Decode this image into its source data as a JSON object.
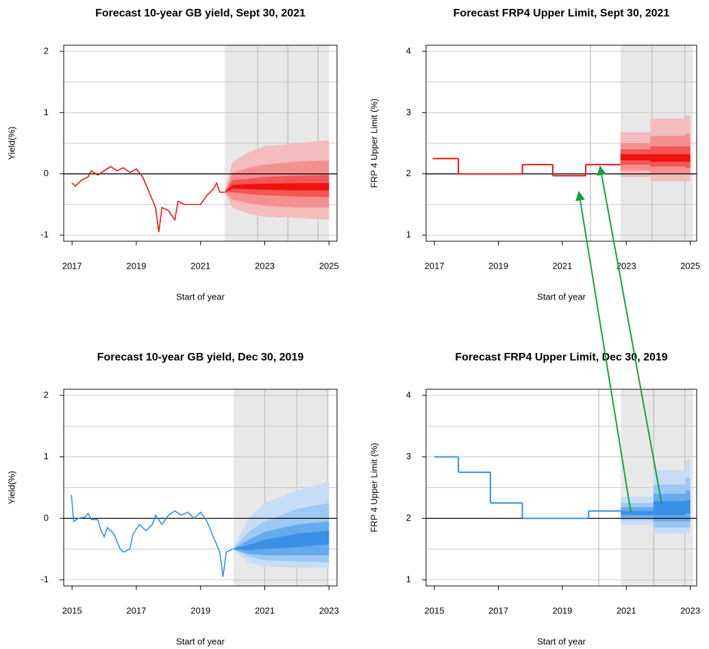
{
  "chart_data": [
    {
      "type": "fan",
      "title": "Forecast 10-year GB yield, Sept 30, 2021",
      "x_label": "Start of year",
      "y_label": "Yield(%)",
      "xlim": [
        2016.74,
        2025.25
      ],
      "xticks": [
        2017,
        2019,
        2021,
        2023,
        2025
      ],
      "xgrid": [
        2022.78,
        2023.72,
        2024.66
      ],
      "ylim": [
        -1.1,
        2.1
      ],
      "yticks": [
        -1,
        0,
        1,
        2
      ],
      "ygrid": [
        -1,
        -0.5,
        0.5,
        1,
        1.5,
        2
      ],
      "hline": 0,
      "forecast_region": [
        2021.75,
        2025.0
      ],
      "shade_color": "#e8e8e8",
      "color": "#e81010",
      "step": false,
      "x": [
        2017.0,
        2017.1,
        2017.3,
        2017.5,
        2017.6,
        2017.8,
        2018.0,
        2018.2,
        2018.4,
        2018.6,
        2018.8,
        2019.0,
        2019.2,
        2019.4,
        2019.6,
        2019.7,
        2019.8,
        2020.0,
        2020.2,
        2020.3,
        2020.5,
        2020.7,
        2021.0,
        2021.2,
        2021.4,
        2021.5,
        2021.6,
        2021.75
      ],
      "values": [
        -0.15,
        -0.2,
        -0.1,
        -0.05,
        0.05,
        -0.02,
        0.05,
        0.12,
        0.05,
        0.1,
        0.02,
        0.08,
        -0.05,
        -0.3,
        -0.55,
        -0.95,
        -0.55,
        -0.6,
        -0.75,
        -0.45,
        -0.5,
        -0.5,
        -0.5,
        -0.35,
        -0.25,
        -0.15,
        -0.3,
        -0.3
      ],
      "fan_x": [
        2021.75,
        2022.0,
        2022.5,
        2023.0,
        2024.0,
        2025.0
      ],
      "bands": [
        {
          "color": "#f4bcbc",
          "upper": [
            -0.3,
            0.2,
            0.35,
            0.45,
            0.5,
            0.55
          ],
          "lower": [
            -0.3,
            -0.55,
            -0.65,
            -0.7,
            -0.72,
            -0.75
          ]
        },
        {
          "color": "#f59090",
          "upper": [
            -0.3,
            0.02,
            0.1,
            0.15,
            0.2,
            0.22
          ],
          "lower": [
            -0.3,
            -0.42,
            -0.48,
            -0.52,
            -0.55,
            -0.55
          ]
        },
        {
          "color": "#f35656",
          "upper": [
            -0.3,
            -0.1,
            -0.08,
            -0.05,
            -0.03,
            -0.02
          ],
          "lower": [
            -0.3,
            -0.3,
            -0.33,
            -0.35,
            -0.37,
            -0.38
          ]
        },
        {
          "color": "#f01010",
          "upper": [
            -0.3,
            -0.18,
            -0.17,
            -0.16,
            -0.15,
            -0.15
          ],
          "lower": [
            -0.3,
            -0.24,
            -0.25,
            -0.26,
            -0.27,
            -0.27
          ]
        }
      ]
    },
    {
      "type": "fan",
      "title": "Forecast FRP4 Upper Limit, Sept 30, 2021",
      "x_label": "Start of year",
      "y_label": "FRP 4 Upper Limit (%)",
      "xlim": [
        2016.74,
        2025.2
      ],
      "xticks": [
        2017,
        2019,
        2021,
        2023,
        2025
      ],
      "xgrid": [
        2021.88,
        2023.8,
        2024.83
      ],
      "ylim": [
        0.9,
        4.1
      ],
      "yticks": [
        1,
        2,
        3,
        4
      ],
      "ygrid": [
        1,
        1.5,
        2.5,
        3,
        3.5,
        4
      ],
      "hline": 2,
      "forecast_region": [
        2022.82,
        2025.08
      ],
      "shade_color": "#e8e8e8",
      "color": "#e81010",
      "step": true,
      "x": [
        2016.95,
        2017.75,
        2019.75,
        2020.7,
        2021.73
      ],
      "values": [
        2.25,
        2.0,
        2.15,
        1.97,
        2.15
      ],
      "fan_x": [
        2022.82,
        2023.75,
        2023.75,
        2024.85,
        2024.85,
        2025.0
      ],
      "bands": [
        {
          "color": "#f4bcbc",
          "upper": [
            2.68,
            2.68,
            2.9,
            2.9,
            2.95,
            2.95
          ],
          "lower": [
            1.95,
            1.95,
            1.88,
            1.88,
            1.88,
            1.88
          ]
        },
        {
          "color": "#f59090",
          "upper": [
            2.5,
            2.5,
            2.62,
            2.62,
            2.65,
            2.65
          ],
          "lower": [
            2.05,
            2.05,
            2.0,
            2.0,
            2.0,
            2.0
          ]
        },
        {
          "color": "#f35656",
          "upper": [
            2.4,
            2.4,
            2.45,
            2.45,
            2.45,
            2.45
          ],
          "lower": [
            2.15,
            2.15,
            2.12,
            2.12,
            2.1,
            2.1
          ]
        },
        {
          "color": "#f01010",
          "upper": [
            2.32,
            2.32,
            2.32,
            2.32,
            2.32,
            2.32
          ],
          "lower": [
            2.22,
            2.22,
            2.2,
            2.2,
            2.2,
            2.2
          ]
        }
      ]
    },
    {
      "type": "fan",
      "title": "Forecast 10-year GB yield, Dec 30, 2019",
      "x_label": "Start of year",
      "y_label": "Yield(%)",
      "xlim": [
        2014.74,
        2023.25
      ],
      "xticks": [
        2015,
        2017,
        2019,
        2021,
        2023
      ],
      "xgrid": [
        2021,
        2022,
        2022.95
      ],
      "ylim": [
        -1.1,
        2.1
      ],
      "yticks": [
        -1,
        0,
        1,
        2
      ],
      "ygrid": [
        -1,
        -0.5,
        0.5,
        1,
        1.5,
        2
      ],
      "hline": 0,
      "forecast_region": [
        2020.03,
        2023.0
      ],
      "shade_color": "#e8e8e8",
      "color": "#2f8fe8",
      "step": false,
      "x": [
        2014.98,
        2015.05,
        2015.2,
        2015.4,
        2015.5,
        2015.6,
        2015.8,
        2015.9,
        2016.0,
        2016.1,
        2016.3,
        2016.5,
        2016.6,
        2016.8,
        2016.9,
        2017.1,
        2017.3,
        2017.5,
        2017.6,
        2017.8,
        2018.0,
        2018.2,
        2018.4,
        2018.6,
        2018.8,
        2019.0,
        2019.2,
        2019.4,
        2019.6,
        2019.7,
        2019.8,
        2020.0
      ],
      "values": [
        0.38,
        -0.05,
        0.0,
        0.02,
        0.08,
        -0.02,
        -0.02,
        -0.2,
        -0.3,
        -0.15,
        -0.25,
        -0.5,
        -0.55,
        -0.5,
        -0.25,
        -0.1,
        -0.2,
        -0.1,
        0.05,
        -0.1,
        0.05,
        0.12,
        0.05,
        0.1,
        0.0,
        0.1,
        -0.05,
        -0.3,
        -0.55,
        -0.95,
        -0.55,
        -0.5
      ],
      "fan_x": [
        2020.0,
        2020.5,
        2021.0,
        2022.0,
        2023.0
      ],
      "bands": [
        {
          "color": "#c6ddf5",
          "upper": [
            -0.5,
            0.0,
            0.25,
            0.45,
            0.6
          ],
          "lower": [
            -0.5,
            -0.72,
            -0.78,
            -0.8,
            -0.8
          ]
        },
        {
          "color": "#9cc8f2",
          "upper": [
            -0.5,
            -0.22,
            -0.05,
            0.15,
            0.25
          ],
          "lower": [
            -0.5,
            -0.62,
            -0.68,
            -0.7,
            -0.72
          ]
        },
        {
          "color": "#66aaee",
          "upper": [
            -0.5,
            -0.35,
            -0.22,
            -0.1,
            -0.05
          ],
          "lower": [
            -0.5,
            -0.58,
            -0.6,
            -0.6,
            -0.6
          ]
        },
        {
          "color": "#3a8fe6",
          "upper": [
            -0.5,
            -0.43,
            -0.35,
            -0.25,
            -0.2
          ],
          "lower": [
            -0.5,
            -0.52,
            -0.5,
            -0.47,
            -0.42
          ]
        }
      ]
    },
    {
      "type": "fan",
      "title": "Forecast FRP4 Upper Limit, Dec 30, 2019",
      "x_label": "Start of year",
      "y_label": "FRP 4 Upper Limit (%)",
      "xlim": [
        2014.74,
        2023.2
      ],
      "xticks": [
        2015,
        2017,
        2019,
        2021,
        2023
      ],
      "xgrid": [
        2020.14,
        2021.86,
        2022.83
      ],
      "ylim": [
        0.9,
        4.1
      ],
      "yticks": [
        1,
        2,
        3,
        4
      ],
      "ygrid": [
        1,
        1.5,
        2.5,
        3,
        3.5,
        4
      ],
      "hline": 2,
      "forecast_region": [
        2020.83,
        2023.09
      ],
      "shade_color": "#e8e8e8",
      "color": "#2f8fe8",
      "step": true,
      "x": [
        2015.0,
        2015.75,
        2016.75,
        2017.75,
        2019.82
      ],
      "values": [
        3.0,
        2.75,
        2.25,
        2.0,
        2.12
      ],
      "fan_x": [
        2020.83,
        2021.85,
        2021.85,
        2022.85,
        2022.85,
        2023.0
      ],
      "bands": [
        {
          "color": "#c6ddf5",
          "upper": [
            2.35,
            2.35,
            2.78,
            2.78,
            2.95,
            2.95
          ],
          "lower": [
            1.9,
            1.9,
            1.75,
            1.75,
            1.75,
            1.75
          ]
        },
        {
          "color": "#9cc8f2",
          "upper": [
            2.25,
            2.25,
            2.55,
            2.55,
            2.65,
            2.65
          ],
          "lower": [
            1.97,
            1.97,
            1.85,
            1.85,
            1.85,
            1.85
          ]
        },
        {
          "color": "#66aaee",
          "upper": [
            2.18,
            2.18,
            2.4,
            2.4,
            2.45,
            2.45
          ],
          "lower": [
            2.02,
            2.02,
            1.95,
            1.95,
            1.95,
            1.95
          ]
        },
        {
          "color": "#3a8fe6",
          "upper": [
            2.12,
            2.12,
            2.28,
            2.28,
            2.3,
            2.3
          ],
          "lower": [
            2.06,
            2.06,
            2.05,
            2.05,
            2.08,
            2.08
          ]
        }
      ]
    }
  ]
}
